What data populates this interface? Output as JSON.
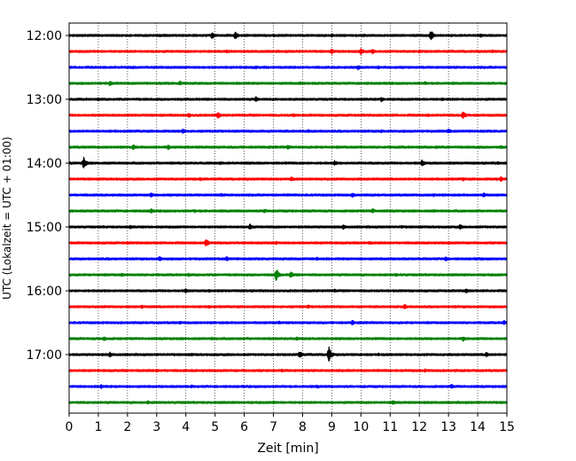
{
  "chart_data": {
    "type": "line",
    "title": "",
    "xlabel": "Zeit  [min]",
    "ylabel": "UTC (Lokalzeit = UTC + 01:00)",
    "x_ticks": [
      0,
      1,
      2,
      3,
      4,
      5,
      6,
      7,
      8,
      9,
      10,
      11,
      12,
      13,
      14,
      15
    ],
    "xlim": [
      0,
      15
    ],
    "y_ticks": [
      {
        "label": "12:00",
        "row": 0
      },
      {
        "label": "13:00",
        "row": 4
      },
      {
        "label": "14:00",
        "row": 8
      },
      {
        "label": "15:00",
        "row": 12
      },
      {
        "label": "16:00",
        "row": 16
      },
      {
        "label": "17:00",
        "row": 20
      }
    ],
    "row_interval_min": 15,
    "row_colors": [
      "#000000",
      "#ff0000",
      "#0000ff",
      "#008000"
    ],
    "x_grid": "dotted",
    "traces": [
      {
        "start": "12:00",
        "color": "#000000",
        "events": [
          [
            4.9,
            4
          ],
          [
            5.7,
            5
          ],
          [
            12.4,
            6
          ],
          [
            3.1,
            2
          ],
          [
            7.0,
            2
          ],
          [
            9.0,
            2
          ],
          [
            10.1,
            2
          ],
          [
            14.1,
            2
          ]
        ]
      },
      {
        "start": "12:15",
        "color": "#ff0000",
        "events": [
          [
            9.0,
            3
          ],
          [
            10.0,
            4
          ],
          [
            10.4,
            3
          ],
          [
            5.4,
            2
          ],
          [
            12.0,
            2
          ],
          [
            14.5,
            2
          ]
        ]
      },
      {
        "start": "12:30",
        "color": "#0000ff",
        "events": [
          [
            2.2,
            2
          ],
          [
            9.9,
            3
          ],
          [
            10.6,
            2
          ],
          [
            6.4,
            2
          ]
        ]
      },
      {
        "start": "12:45",
        "color": "#008000",
        "events": [
          [
            1.4,
            3
          ],
          [
            3.8,
            3
          ],
          [
            7.9,
            2
          ],
          [
            12.2,
            2
          ]
        ]
      },
      {
        "start": "13:00",
        "color": "#000000",
        "events": [
          [
            6.4,
            3
          ],
          [
            10.7,
            3
          ],
          [
            1.0,
            2
          ],
          [
            12.8,
            2
          ]
        ]
      },
      {
        "start": "13:15",
        "color": "#ff0000",
        "events": [
          [
            4.1,
            3
          ],
          [
            5.1,
            4
          ],
          [
            13.5,
            5
          ],
          [
            12.3,
            2
          ],
          [
            7.7,
            2
          ]
        ]
      },
      {
        "start": "13:30",
        "color": "#0000ff",
        "events": [
          [
            3.9,
            3
          ],
          [
            8.2,
            2
          ],
          [
            13.0,
            3
          ],
          [
            10.7,
            2
          ]
        ]
      },
      {
        "start": "13:45",
        "color": "#008000",
        "events": [
          [
            2.2,
            3
          ],
          [
            3.4,
            3
          ],
          [
            7.5,
            3
          ],
          [
            12.6,
            2
          ],
          [
            14.8,
            2
          ]
        ]
      },
      {
        "start": "14:00",
        "color": "#000000",
        "events": [
          [
            0.5,
            7
          ],
          [
            12.1,
            4
          ],
          [
            9.1,
            3
          ],
          [
            3.5,
            2
          ],
          [
            5.2,
            2
          ],
          [
            14.7,
            2
          ]
        ]
      },
      {
        "start": "14:15",
        "color": "#ff0000",
        "events": [
          [
            4.5,
            2
          ],
          [
            7.6,
            3
          ],
          [
            13.5,
            2
          ],
          [
            14.8,
            3
          ]
        ]
      },
      {
        "start": "14:30",
        "color": "#0000ff",
        "events": [
          [
            2.8,
            3
          ],
          [
            9.7,
            3
          ],
          [
            14.2,
            3
          ],
          [
            5.2,
            2
          ],
          [
            12.5,
            2
          ]
        ]
      },
      {
        "start": "14:45",
        "color": "#008000",
        "events": [
          [
            2.8,
            3
          ],
          [
            6.7,
            3
          ],
          [
            10.4,
            3
          ],
          [
            4.3,
            2
          ],
          [
            12.5,
            2
          ]
        ]
      },
      {
        "start": "15:00",
        "color": "#000000",
        "events": [
          [
            6.2,
            4
          ],
          [
            9.4,
            3
          ],
          [
            13.4,
            3
          ],
          [
            2.1,
            2
          ],
          [
            11.4,
            2
          ]
        ]
      },
      {
        "start": "15:15",
        "color": "#ff0000",
        "events": [
          [
            4.7,
            5
          ],
          [
            2.0,
            2
          ],
          [
            7.1,
            2
          ],
          [
            10.3,
            2
          ],
          [
            13.0,
            2
          ]
        ]
      },
      {
        "start": "15:30",
        "color": "#0000ff",
        "events": [
          [
            3.1,
            3
          ],
          [
            5.4,
            3
          ],
          [
            12.9,
            3
          ],
          [
            8.5,
            2
          ]
        ]
      },
      {
        "start": "15:45",
        "color": "#008000",
        "events": [
          [
            7.1,
            7
          ],
          [
            7.6,
            4
          ],
          [
            4.1,
            2
          ],
          [
            1.8,
            2
          ],
          [
            11.2,
            2
          ]
        ]
      },
      {
        "start": "16:00",
        "color": "#000000",
        "events": [
          [
            4.0,
            3
          ],
          [
            4.8,
            2
          ],
          [
            13.6,
            3
          ],
          [
            9.1,
            2
          ]
        ]
      },
      {
        "start": "16:15",
        "color": "#ff0000",
        "events": [
          [
            2.5,
            2
          ],
          [
            8.2,
            2
          ],
          [
            11.5,
            3
          ],
          [
            4.8,
            2
          ]
        ]
      },
      {
        "start": "16:30",
        "color": "#0000ff",
        "events": [
          [
            3.8,
            2
          ],
          [
            9.7,
            3
          ],
          [
            14.9,
            3
          ],
          [
            7.2,
            2
          ]
        ]
      },
      {
        "start": "16:45",
        "color": "#008000",
        "events": [
          [
            1.2,
            3
          ],
          [
            13.5,
            3
          ],
          [
            7.8,
            2
          ],
          [
            4.9,
            2
          ]
        ]
      },
      {
        "start": "17:00",
        "color": "#000000",
        "events": [
          [
            8.9,
            9
          ],
          [
            7.9,
            5
          ],
          [
            1.4,
            3
          ],
          [
            14.3,
            3
          ],
          [
            4.2,
            2
          ],
          [
            10.6,
            2
          ]
        ]
      },
      {
        "start": "17:15",
        "color": "#ff0000",
        "events": [
          [
            3.0,
            2
          ],
          [
            12.2,
            2
          ],
          [
            7.3,
            2
          ]
        ]
      },
      {
        "start": "17:30",
        "color": "#0000ff",
        "events": [
          [
            1.1,
            3
          ],
          [
            4.2,
            2
          ],
          [
            13.1,
            3
          ],
          [
            8.5,
            2
          ]
        ]
      },
      {
        "start": "17:45",
        "color": "#008000",
        "events": [
          [
            2.7,
            2
          ],
          [
            11.1,
            3
          ],
          [
            7.0,
            2
          ]
        ]
      }
    ]
  }
}
